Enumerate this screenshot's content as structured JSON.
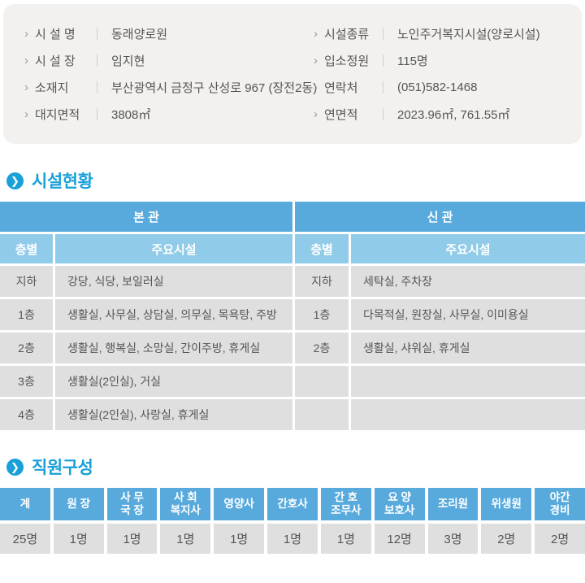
{
  "colors": {
    "accent_blue": "#1aa0d8",
    "table_header_blue": "#58aadd",
    "table_subheader_blue": "#90cbe9",
    "cell_gray": "#dfdfdf",
    "panel_bg": "#f2f1ef",
    "text_dark": "#555555"
  },
  "icons": {
    "row_chevron": "›",
    "section_arrow": "❯"
  },
  "info_panel": {
    "left": [
      {
        "label": "시 설 명",
        "value": "동래양로원"
      },
      {
        "label": "시 설 장",
        "value": "임지현"
      },
      {
        "label": "소재지",
        "value": "부산광역시 금정구 산성로 967 (장전2동)"
      },
      {
        "label": "대지면적",
        "value": "3808㎡"
      }
    ],
    "right": [
      {
        "label": "시설종류",
        "value": "노인주거복지시설(양로시설)"
      },
      {
        "label": "입소정원",
        "value": "115명"
      },
      {
        "label": "연락처",
        "value": "(051)582-1468"
      },
      {
        "label": "연면적",
        "value": "2023.96㎡, 761.55㎡"
      }
    ]
  },
  "facility_section": {
    "title": "시설현황",
    "building_headers": [
      "본 관",
      "신 관"
    ],
    "floor_header": "층별",
    "facility_header": "주요시설",
    "rows": [
      {
        "main_floor": "지하",
        "main_fac": "강당, 식당, 보일러실",
        "new_floor": "지하",
        "new_fac": "세탁실, 주차장"
      },
      {
        "main_floor": "1층",
        "main_fac": "생활실, 사무실, 상담실, 의무실, 목욕탕, 주방",
        "new_floor": "1층",
        "new_fac": "다목적실, 원장실, 사무실, 이미용실"
      },
      {
        "main_floor": "2층",
        "main_fac": "생활실, 행복실, 소망실, 간이주방, 휴게실",
        "new_floor": "2층",
        "new_fac": "생활실, 샤워실, 휴게실"
      },
      {
        "main_floor": "3층",
        "main_fac": "생활실(2인실), 거실",
        "new_floor": "",
        "new_fac": ""
      },
      {
        "main_floor": "4층",
        "main_fac": "생활실(2인실), 사랑실, 휴게실",
        "new_floor": "",
        "new_fac": ""
      }
    ]
  },
  "staff_section": {
    "title": "직원구성",
    "columns": [
      {
        "header": "계",
        "value": "25명"
      },
      {
        "header": "원 장",
        "value": "1명"
      },
      {
        "header": "사 무\n국 장",
        "value": "1명"
      },
      {
        "header": "사 회\n복지사",
        "value": "1명"
      },
      {
        "header": "영양사",
        "value": "1명"
      },
      {
        "header": "간호사",
        "value": "1명"
      },
      {
        "header": "간 호\n조무사",
        "value": "1명"
      },
      {
        "header": "요 양\n보호사",
        "value": "12명"
      },
      {
        "header": "조리원",
        "value": "3명"
      },
      {
        "header": "위생원",
        "value": "2명"
      },
      {
        "header": "야간\n경비",
        "value": "2명"
      }
    ]
  }
}
